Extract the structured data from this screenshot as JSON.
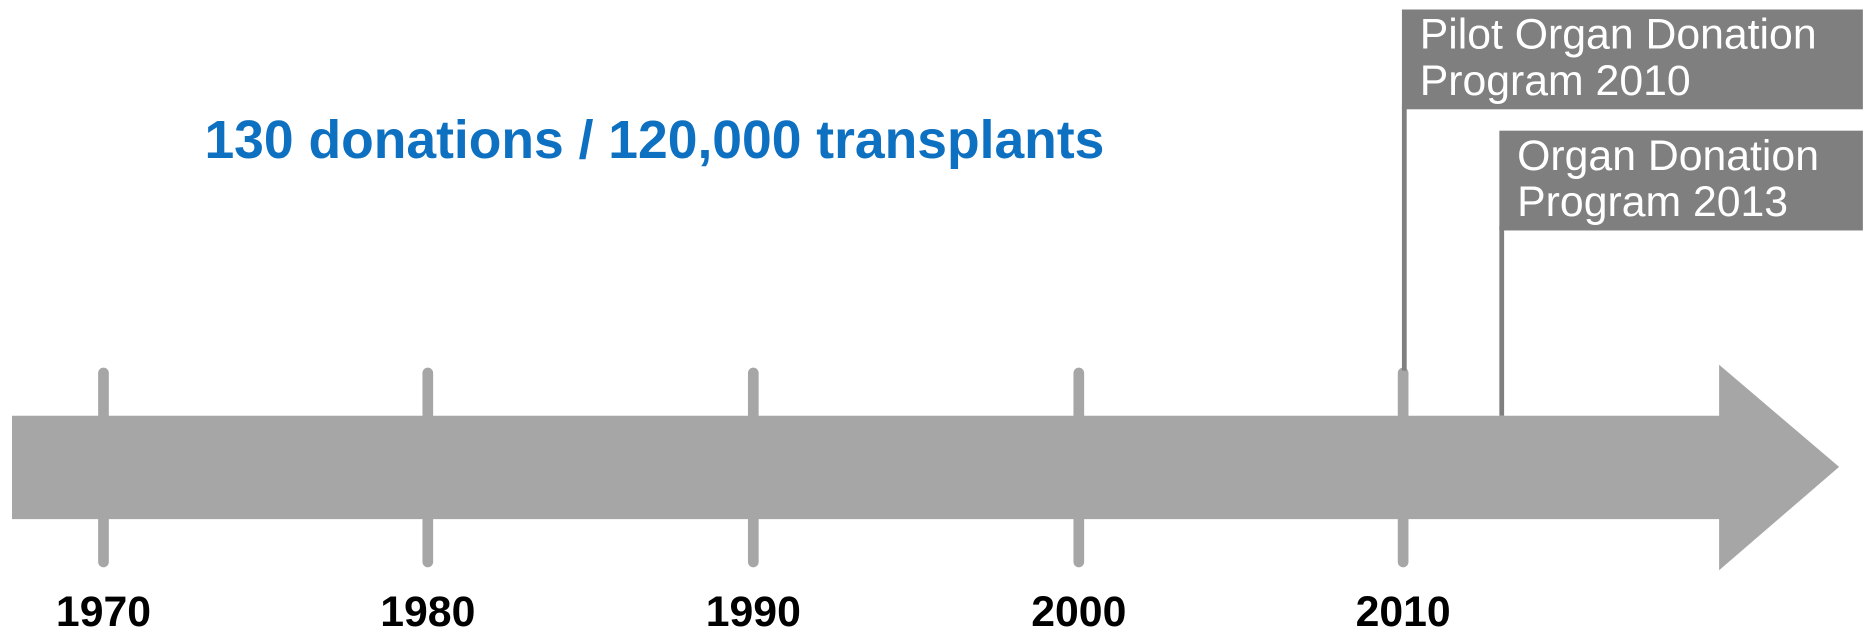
{
  "headline": "130 donations / 120,000 transplants",
  "timeline": {
    "labels": [
      "1970",
      "1980",
      "1990",
      "2000",
      "2010"
    ]
  },
  "events": [
    {
      "lines": [
        "Pilot Organ Donation",
        "Program 2010"
      ]
    },
    {
      "lines": [
        "Organ Donation",
        "Program 2013"
      ]
    }
  ]
}
